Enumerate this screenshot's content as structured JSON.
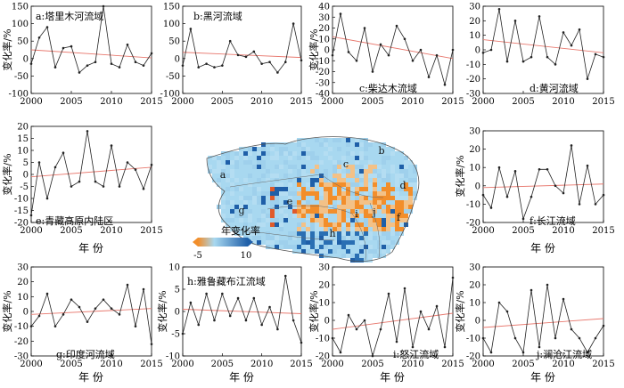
{
  "figure": {
    "map_legend_title": "年变化率",
    "map_legend_min": "-5",
    "map_legend_max": "10",
    "map_colors": {
      "low": "#f28e2b",
      "mid": "#a8d8f0",
      "high": "#1f5fa8"
    },
    "map_region_labels": [
      "a",
      "b",
      "c",
      "d",
      "e",
      "f",
      "g",
      "h",
      "i",
      "j"
    ]
  },
  "chart_data": [
    {
      "type": "line",
      "panel_label": "a:塔里木河流域",
      "xlabel": "",
      "ylabel": "变化率/%",
      "x": [
        2000,
        2001,
        2002,
        2003,
        2004,
        2005,
        2006,
        2007,
        2008,
        2009,
        2010,
        2011,
        2012,
        2013,
        2014,
        2015
      ],
      "values": [
        -15,
        60,
        90,
        -25,
        30,
        35,
        -40,
        -20,
        -10,
        150,
        -15,
        -25,
        40,
        -10,
        -20,
        15
      ],
      "trend": [
        25,
        2
      ],
      "xlim": [
        2000,
        2015
      ],
      "ylim": [
        -100,
        150
      ],
      "yticks": [
        -100,
        -50,
        0,
        50,
        100,
        150
      ],
      "xticks": [
        2000,
        2005,
        2010,
        2015
      ]
    },
    {
      "type": "line",
      "panel_label": "b:黑河流域",
      "xlabel": "",
      "ylabel": "",
      "x": [
        2000,
        2001,
        2002,
        2003,
        2004,
        2005,
        2006,
        2007,
        2008,
        2009,
        2010,
        2011,
        2012,
        2013,
        2014,
        2015
      ],
      "values": [
        -20,
        85,
        -25,
        -15,
        -25,
        -20,
        50,
        10,
        5,
        20,
        -15,
        -10,
        -40,
        -10,
        100,
        -5
      ],
      "trend": [
        18,
        3
      ],
      "xlim": [
        2000,
        2015
      ],
      "ylim": [
        -100,
        150
      ],
      "yticks": [
        -100,
        -50,
        0,
        50,
        100,
        150
      ],
      "xticks": [
        2000,
        2005,
        2010,
        2015
      ]
    },
    {
      "type": "line",
      "panel_label": "c:柴达木流域",
      "xlabel": "",
      "ylabel": "变化率/%",
      "x": [
        2000,
        2001,
        2002,
        2003,
        2004,
        2005,
        2006,
        2007,
        2008,
        2009,
        2010,
        2011,
        2012,
        2013,
        2014,
        2015
      ],
      "values": [
        -5,
        33,
        -2,
        -10,
        20,
        -20,
        5,
        -5,
        22,
        10,
        -10,
        0,
        -25,
        -5,
        -32,
        0
      ],
      "trend": [
        12,
        -8
      ],
      "xlim": [
        2000,
        2015
      ],
      "ylim": [
        -40,
        40
      ],
      "yticks": [
        -40,
        -30,
        -20,
        -10,
        0,
        10,
        20,
        30,
        40
      ],
      "xticks": [
        2000,
        2005,
        2010,
        2015
      ]
    },
    {
      "type": "line",
      "panel_label": "d:黄河流域",
      "xlabel": "",
      "ylabel": "",
      "x": [
        2000,
        2001,
        2002,
        2003,
        2004,
        2005,
        2006,
        2007,
        2008,
        2009,
        2010,
        2011,
        2012,
        2013,
        2014,
        2015
      ],
      "values": [
        -2,
        0,
        28,
        -8,
        20,
        -8,
        -5,
        23,
        -5,
        -10,
        12,
        3,
        14,
        -20,
        -3,
        -5
      ],
      "trend": [
        7,
        -2
      ],
      "xlim": [
        2000,
        2015
      ],
      "ylim": [
        -30,
        30
      ],
      "yticks": [
        -30,
        -20,
        -10,
        0,
        10,
        20,
        30
      ],
      "xticks": [
        2000,
        2005,
        2010,
        2015
      ]
    },
    {
      "type": "line",
      "panel_label": "e:青藏高原内陆区",
      "xlabel": "年 份",
      "ylabel": "变化率/%",
      "x": [
        2000,
        2001,
        2002,
        2003,
        2004,
        2005,
        2006,
        2007,
        2008,
        2009,
        2010,
        2011,
        2012,
        2013,
        2014,
        2015
      ],
      "values": [
        -17,
        5,
        -10,
        3,
        9,
        -5,
        -3,
        18,
        -3,
        -5,
        12,
        -5,
        5,
        2,
        -6,
        4
      ],
      "trend": [
        -1,
        3
      ],
      "xlim": [
        2000,
        2015
      ],
      "ylim": [
        -20,
        20
      ],
      "yticks": [
        -20,
        -15,
        -10,
        -5,
        0,
        5,
        10,
        15,
        20
      ],
      "xticks": [
        2000,
        2005,
        2010,
        2015
      ]
    },
    {
      "type": "line",
      "panel_label": "f:长江流域",
      "xlabel": "年 份",
      "ylabel": "变化率/%",
      "x": [
        2000,
        2001,
        2002,
        2003,
        2004,
        2005,
        2006,
        2007,
        2008,
        2009,
        2010,
        2011,
        2012,
        2013,
        2014,
        2015
      ],
      "values": [
        -5,
        -12,
        10,
        -6,
        8,
        -18,
        -6,
        9,
        9,
        0,
        -4,
        22,
        -10,
        11,
        -10,
        -5
      ],
      "trend": [
        -1,
        1
      ],
      "xlim": [
        2000,
        2015
      ],
      "ylim": [
        -20,
        30
      ],
      "yticks": [
        -20,
        -10,
        0,
        10,
        20,
        30
      ],
      "xticks": [
        2000,
        2005,
        2010,
        2015
      ]
    },
    {
      "type": "line",
      "panel_label": "g:印度河流域",
      "xlabel": "年 份",
      "ylabel": "变化率/%",
      "x": [
        2000,
        2001,
        2002,
        2003,
        2004,
        2005,
        2006,
        2007,
        2008,
        2009,
        2010,
        2011,
        2012,
        2013,
        2014,
        2015
      ],
      "values": [
        -10,
        -3,
        12,
        -10,
        -2,
        8,
        3,
        -7,
        2,
        8,
        2,
        -2,
        18,
        -10,
        15,
        -22
      ],
      "trend": [
        -2,
        2
      ],
      "xlim": [
        2000,
        2015
      ],
      "ylim": [
        -30,
        30
      ],
      "yticks": [
        -30,
        -20,
        -10,
        0,
        10,
        20,
        30
      ],
      "xticks": [
        2000,
        2005,
        2010,
        2015
      ]
    },
    {
      "type": "line",
      "panel_label": "h:雅鲁藏布江流域",
      "xlabel": "年 份",
      "ylabel": "变化率/%",
      "x": [
        2000,
        2001,
        2002,
        2003,
        2004,
        2005,
        2006,
        2007,
        2008,
        2009,
        2010,
        2011,
        2012,
        2013,
        2014,
        2015
      ],
      "values": [
        -5,
        2,
        -3,
        4,
        -2,
        4,
        -1,
        3,
        -2,
        3,
        -3,
        1,
        -4,
        8,
        -2,
        -7
      ],
      "trend": [
        0.5,
        -0.5
      ],
      "xlim": [
        2000,
        2015
      ],
      "ylim": [
        -10,
        10
      ],
      "yticks": [
        -10,
        -5,
        0,
        5,
        10
      ],
      "xticks": [
        2000,
        2005,
        2010,
        2015
      ]
    },
    {
      "type": "line",
      "panel_label": "i:怒江流域",
      "xlabel": "年 份",
      "ylabel": "变化率/%",
      "x": [
        2000,
        2001,
        2002,
        2003,
        2004,
        2005,
        2006,
        2007,
        2008,
        2009,
        2010,
        2011,
        2012,
        2013,
        2014,
        2015
      ],
      "values": [
        -10,
        -18,
        3,
        -5,
        0,
        -20,
        -5,
        15,
        -12,
        18,
        -15,
        5,
        -5,
        8,
        -15,
        24
      ],
      "trend": [
        -5,
        4
      ],
      "xlim": [
        2000,
        2015
      ],
      "ylim": [
        -20,
        30
      ],
      "yticks": [
        -20,
        -10,
        0,
        10,
        20,
        30
      ],
      "xticks": [
        2000,
        2005,
        2010,
        2015
      ]
    },
    {
      "type": "line",
      "panel_label": "j:澜沧江流域",
      "xlabel": "年 份",
      "ylabel": "变化率/%",
      "x": [
        2000,
        2001,
        2002,
        2003,
        2004,
        2005,
        2006,
        2007,
        2008,
        2009,
        2010,
        2011,
        2012,
        2013,
        2014,
        2015
      ],
      "values": [
        -10,
        -18,
        10,
        5,
        -10,
        -18,
        17,
        -15,
        20,
        -10,
        12,
        -5,
        -10,
        -18,
        -10,
        -3
      ],
      "trend": [
        -4,
        1
      ],
      "xlim": [
        2000,
        2015
      ],
      "ylim": [
        -20,
        30
      ],
      "yticks": [
        -20,
        -10,
        0,
        10,
        20,
        30
      ],
      "xticks": [
        2000,
        2005,
        2010,
        2015
      ]
    }
  ]
}
